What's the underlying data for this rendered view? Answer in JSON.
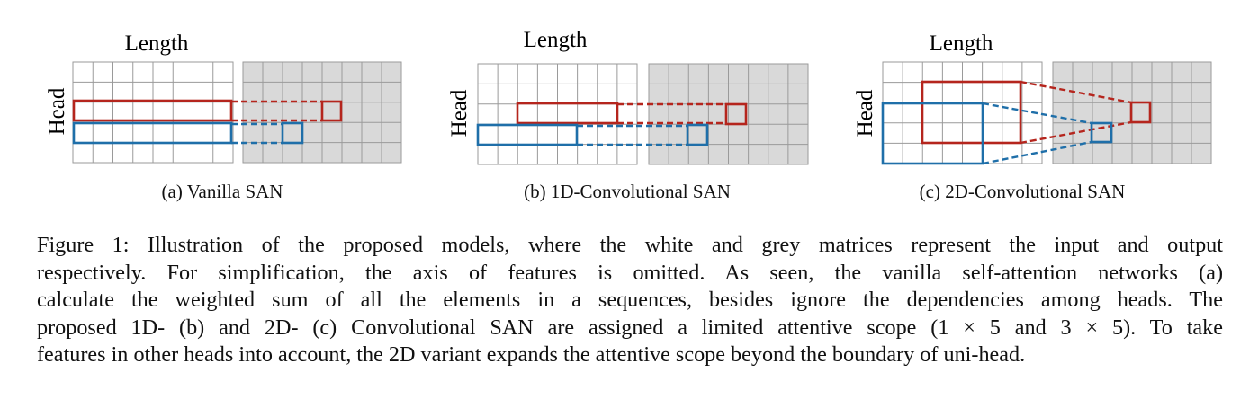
{
  "figure": {
    "panels": [
      {
        "id": "a",
        "axis_top": "Length",
        "axis_left": "Head",
        "caption": "(a) Vanilla SAN"
      },
      {
        "id": "b",
        "axis_top": "Length",
        "axis_left": "Head",
        "caption": "(b) 1D-Convolutional SAN"
      },
      {
        "id": "c",
        "axis_top": "Length",
        "axis_left": "Head",
        "caption": "(c) 2D-Convolutional SAN"
      }
    ],
    "colors": {
      "red": "#b5251d",
      "blue": "#1f6fa9",
      "grid": "#9a9a9a",
      "output_fill": "#d9d9d9"
    }
  },
  "caption": {
    "lines": [
      "Figure 1: Illustration of the proposed models, where the white and grey matrices represent the input and output",
      "respectively. For simplification, the axis of features is omitted. As seen, the vanilla self-attention networks (a)",
      "calculate the weighted sum of all the elements in a sequences, besides ignore the dependencies among heads. The",
      "proposed 1D- (b) and 2D- (c) Convolutional SAN are assigned a limited attentive scope (1 × 5 and 3 × 5). To take",
      "features in other heads into account, the 2D variant expands the attentive scope beyond the boundary of uni-head."
    ]
  }
}
